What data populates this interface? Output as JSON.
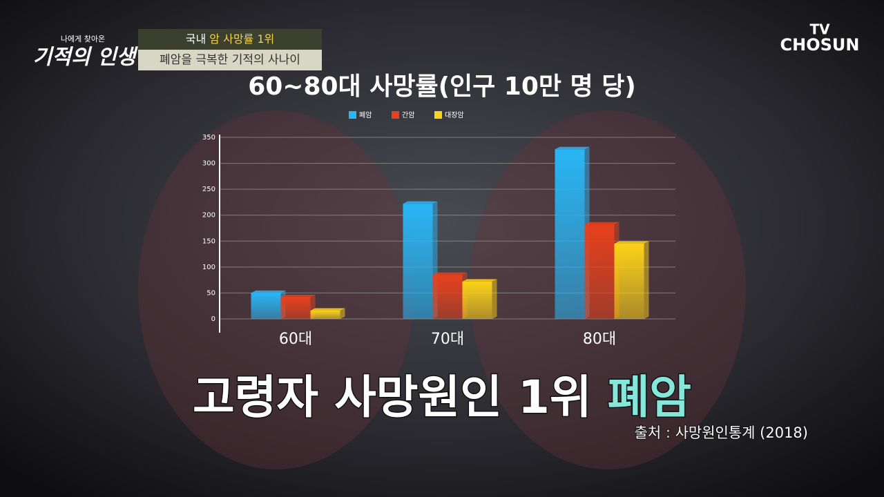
{
  "chart_data": {
    "type": "bar",
    "title": "60~80대 사망률(인구 10만 명 당)",
    "categories": [
      "60대",
      "70대",
      "80대"
    ],
    "series": [
      {
        "name": "폐암",
        "color": "#29b6f6",
        "values": [
          50,
          222,
          327
        ]
      },
      {
        "name": "간암",
        "color": "#e8401c",
        "values": [
          42,
          85,
          182
        ]
      },
      {
        "name": "대장암",
        "color": "#fcd21a",
        "values": [
          16,
          72,
          145
        ]
      }
    ],
    "ylim": [
      0,
      350
    ],
    "yticks": [
      0,
      50,
      100,
      150,
      200,
      250,
      300,
      350
    ],
    "grid": true,
    "legend": "top"
  },
  "overlay": {
    "show_logo": {
      "small": "나에게 찾아온",
      "main": "기적의 인생"
    },
    "banner": {
      "prefix": "국내",
      "highlight": "암 사망률 1위",
      "subtitle": "폐암을 극복한 기적의 사나이"
    },
    "channel": {
      "line1": "TV",
      "line2": "CHOSUN"
    },
    "caption": {
      "main": "고령자 사망원인 1위",
      "highlight": "폐암"
    },
    "source": "출처 : 사망원인통계 (2018)"
  }
}
